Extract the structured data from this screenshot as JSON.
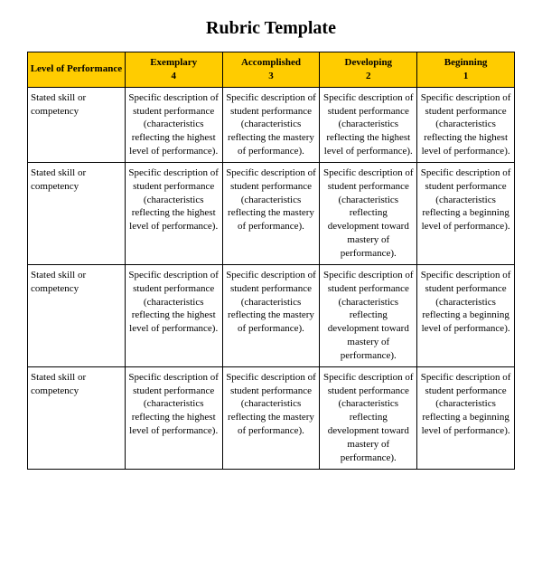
{
  "title": "Rubric Template",
  "table": {
    "header_bg": "#ffcc00",
    "border_color": "#000000",
    "font_family": "Times New Roman",
    "title_fontsize": 20,
    "cell_fontsize": 11,
    "columns": [
      {
        "label": "Level of Performance",
        "sub": ""
      },
      {
        "label": "Exemplary",
        "sub": "4"
      },
      {
        "label": "Accomplished",
        "sub": "3"
      },
      {
        "label": "Developing",
        "sub": "2"
      },
      {
        "label": "Beginning",
        "sub": "1"
      }
    ],
    "rows": [
      {
        "head": "Stated skill or competency",
        "cells": [
          "Specific description of student performance (characteristics reflecting the highest level of performance).",
          "Specific description of student performance (characteristics reflecting the mastery of performance).",
          "Specific description of student performance (characteristics reflecting the highest level of performance).",
          "Specific description of student performance (characteristics reflecting the highest level of performance)."
        ]
      },
      {
        "head": "Stated skill or competency",
        "cells": [
          "Specific description of student performance (characteristics reflecting the highest level of performance).",
          "Specific description of student performance (characteristics reflecting the mastery of performance).",
          "Specific description of student performance (characteristics reflecting development toward mastery of performance).",
          "Specific description of student performance (characteristics reflecting a beginning level of performance)."
        ]
      },
      {
        "head": "Stated skill or competency",
        "cells": [
          "Specific description of student performance (characteristics reflecting the highest level of performance).",
          "Specific description of student performance (characteristics reflecting the mastery of performance).",
          "Specific description of student performance (characteristics reflecting development toward mastery of performance).",
          "Specific description of student performance (characteristics reflecting a beginning level of performance)."
        ]
      },
      {
        "head": "Stated skill or competency",
        "cells": [
          "Specific description of student performance (characteristics reflecting the highest level of performance).",
          "Specific description of student performance (characteristics reflecting the mastery of performance).",
          "Specific description of student performance (characteristics reflecting development toward mastery of performance).",
          "Specific description of student performance (characteristics reflecting a beginning level of performance)."
        ]
      }
    ]
  }
}
